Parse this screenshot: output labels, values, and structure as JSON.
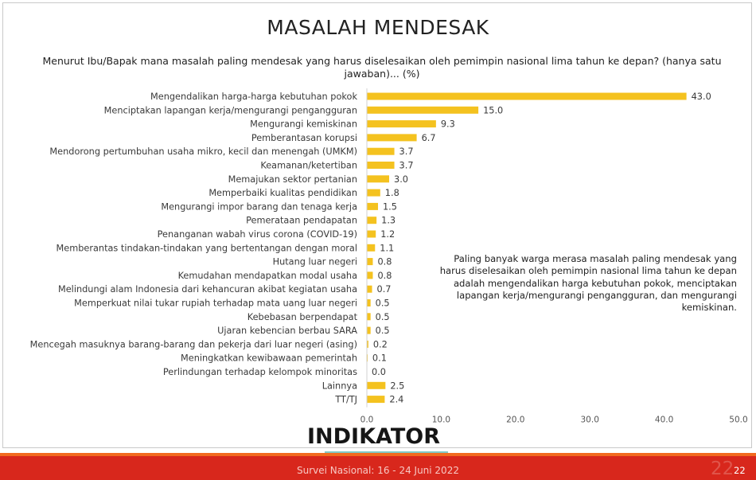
{
  "title": "MASALAH MENDESAK",
  "question": "Menurut Ibu/Bapak mana masalah paling mendesak yang harus diselesaikan oleh pemimpin nasional lima tahun ke depan? (hanya satu jawaban)... (%)",
  "note": "Paling banyak warga merasa masalah paling mendesak yang harus diselesaikan oleh pemimpin nasional lima tahun ke depan adalah mengendalikan harga kebutuhan pokok, menciptakan lapangan kerja/mengurangi pengangguran, dan mengurangi kemiskinan.",
  "logo_text": "INDIKATOR",
  "footer_text": "Survei Nasional: 16 - 24 Juni 2022",
  "page_number": "22",
  "colors": {
    "bar": "#f4c21f",
    "footer": "#d8271c",
    "accent": "#7fc9c7"
  },
  "chart_data": {
    "type": "bar",
    "orientation": "horizontal",
    "categories": [
      "Mengendalikan harga-harga kebutuhan pokok",
      "Menciptakan lapangan kerja/mengurangi pengangguran",
      "Mengurangi kemiskinan",
      "Pemberantasan korupsi",
      "Mendorong pertumbuhan usaha mikro, kecil dan menengah (UMKM)",
      "Keamanan/ketertiban",
      "Memajukan sektor pertanian",
      "Memperbaiki kualitas pendidikan",
      "Mengurangi impor barang dan tenaga kerja",
      "Pemerataan pendapatan",
      "Penanganan wabah virus corona (COVID-19)",
      "Memberantas tindakan-tindakan yang bertentangan dengan moral",
      "Hutang luar negeri",
      "Kemudahan mendapatkan modal usaha",
      "Melindungi alam Indonesia dari kehancuran akibat kegiatan usaha",
      "Memperkuat nilai tukar rupiah terhadap mata uang luar negeri",
      "Kebebasan berpendapat",
      "Ujaran kebencian berbau SARA",
      "Mencegah masuknya barang-barang dan pekerja dari luar negeri (asing)",
      "Meningkatkan kewibawaan pemerintah",
      "Perlindungan terhadap kelompok minoritas",
      "Lainnya",
      "TT/TJ"
    ],
    "values": [
      43.0,
      15.0,
      9.3,
      6.7,
      3.7,
      3.7,
      3.0,
      1.8,
      1.5,
      1.3,
      1.2,
      1.1,
      0.8,
      0.8,
      0.7,
      0.5,
      0.5,
      0.5,
      0.2,
      0.1,
      0.0,
      2.5,
      2.4
    ],
    "value_labels": [
      "43.0",
      "15.0",
      "9.3",
      "6.7",
      "3.7",
      "3.7",
      "3.0",
      "1.8",
      "1.5",
      "1.3",
      "1.2",
      "1.1",
      "0.8",
      "0.8",
      "0.7",
      "0.5",
      "0.5",
      "0.5",
      "0.2",
      "0.1",
      "0.0",
      "2.5",
      "2.4"
    ],
    "xlim": [
      0,
      50
    ],
    "xticks": [
      "0.0",
      "10.0",
      "20.0",
      "30.0",
      "40.0",
      "50.0"
    ],
    "xtick_values": [
      0,
      10,
      20,
      30,
      40,
      50
    ],
    "grid": false,
    "legend": "none"
  }
}
